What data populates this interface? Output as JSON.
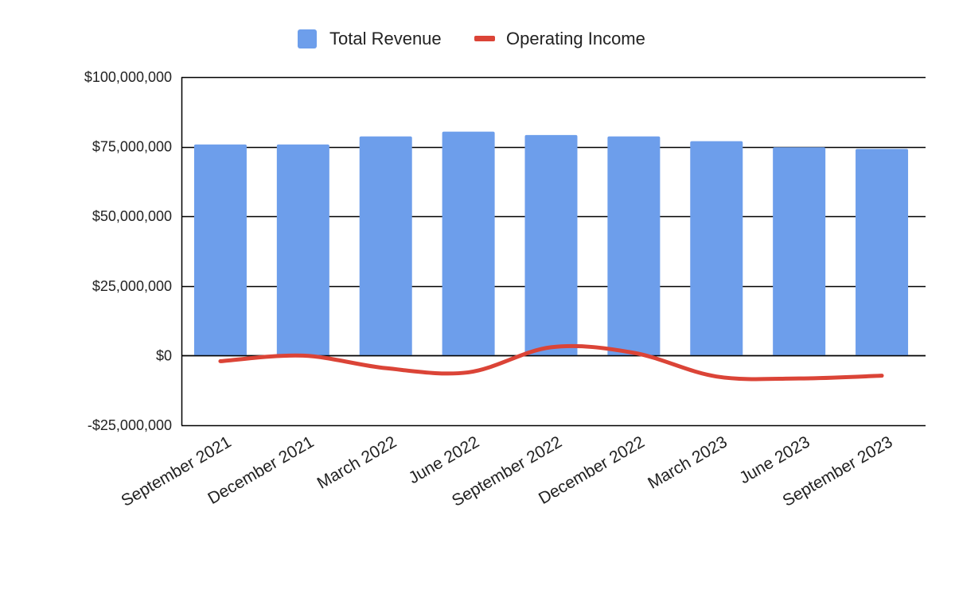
{
  "chart_data": {
    "type": "bar",
    "title": "",
    "xlabel": "",
    "ylabel": "",
    "categories": [
      "September 2021",
      "December 2021",
      "March 2022",
      "June 2022",
      "September 2022",
      "December 2022",
      "March 2023",
      "June 2023",
      "September 2023"
    ],
    "ylim": [
      -25000000,
      100000000
    ],
    "y_ticks": [
      100000000,
      75000000,
      50000000,
      25000000,
      0,
      -25000000
    ],
    "y_tick_labels": [
      "$100,000,000",
      "$75,000,000",
      "$50,000,000",
      "$25,000,000",
      "$0",
      "-$25,000,000"
    ],
    "grid": true,
    "legend_position": "top-center",
    "series": [
      {
        "name": "Total Revenue",
        "type": "bar",
        "color": "#6d9eeb",
        "values": [
          75800000,
          75800000,
          78700000,
          80400000,
          79200000,
          78700000,
          77000000,
          74800000,
          74200000
        ]
      },
      {
        "name": "Operating Income",
        "type": "line",
        "smooth": true,
        "color": "#db4437",
        "values": [
          -2000000,
          0,
          -4500000,
          -6000000,
          3000000,
          1000000,
          -7500000,
          -8200000,
          -7200000
        ]
      }
    ]
  }
}
